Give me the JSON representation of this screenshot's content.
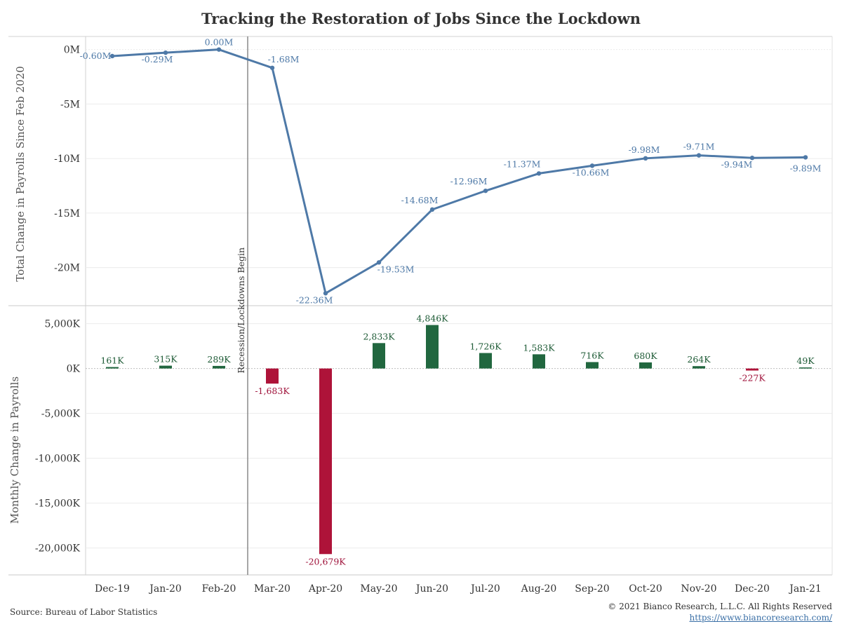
{
  "title": "Tracking the Restoration of Jobs Since the Lockdown",
  "source": "Source: Bureau of Labor Statistics",
  "copyright": "© 2021 Bianco Research, L.L.C. All Rights Reserved",
  "website": "https://www.biancoresearch.com/",
  "colors": {
    "line": "#4e79a7",
    "positive_bar": "#21673f",
    "negative_bar": "#ae1339",
    "annotation_line": "#888888"
  },
  "chart_data": [
    {
      "type": "line",
      "ylabel": "Total Change in Payrolls Since Feb 2020",
      "ylim": [
        -23.5,
        1.2
      ],
      "ticks": [
        0,
        -5,
        -10,
        -15,
        -20
      ],
      "tick_labels": [
        "0M",
        "-5M",
        "-10M",
        "-15M",
        "-20M"
      ],
      "categories": [
        "Dec-19",
        "Jan-20",
        "Feb-20",
        "Mar-20",
        "Apr-20",
        "May-20",
        "Jun-20",
        "Jul-20",
        "Aug-20",
        "Sep-20",
        "Oct-20",
        "Nov-20",
        "Dec-20",
        "Jan-21"
      ],
      "values": [
        -0.6,
        -0.29,
        0.0,
        -1.68,
        -22.36,
        -19.53,
        -14.68,
        -12.96,
        -11.37,
        -10.66,
        -9.98,
        -9.71,
        -9.94,
        -9.89
      ],
      "data_labels": [
        "-0.60M",
        "-0.29M",
        "0.00M",
        "-1.68M",
        "-22.36M",
        "-19.53M",
        "-14.68M",
        "-12.96M",
        "-11.37M",
        "-10.66M",
        "-9.98M",
        "-9.71M",
        "-9.94M",
        "-9.89M"
      ],
      "grid": true
    },
    {
      "type": "bar",
      "ylabel": "Monthly Change in Payrolls",
      "ylim": [
        -23000,
        7000
      ],
      "ticks": [
        5000,
        0,
        -5000,
        -10000,
        -15000,
        -20000
      ],
      "tick_labels": [
        "5,000K",
        "0K",
        "-5,000K",
        "-10,000K",
        "-15,000K",
        "-20,000K"
      ],
      "categories": [
        "Dec-19",
        "Jan-20",
        "Feb-20",
        "Mar-20",
        "Apr-20",
        "May-20",
        "Jun-20",
        "Jul-20",
        "Aug-20",
        "Sep-20",
        "Oct-20",
        "Nov-20",
        "Dec-20",
        "Jan-21"
      ],
      "values": [
        161,
        315,
        289,
        -1683,
        -20679,
        2833,
        4846,
        1726,
        1583,
        716,
        680,
        264,
        -227,
        49
      ],
      "data_labels": [
        "161K",
        "315K",
        "289K",
        "-1,683K",
        "-20,679K",
        "2,833K",
        "4,846K",
        "1,726K",
        "1,583K",
        "716K",
        "680K",
        "264K",
        "-227K",
        "49K"
      ],
      "grid": true
    }
  ],
  "annotation": {
    "label": "Recession/Lockdowns Begin",
    "at_category": "Mar-20"
  }
}
